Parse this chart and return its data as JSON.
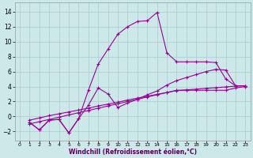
{
  "xlabel": "Windchill (Refroidissement éolien,°C)",
  "background_color": "#cce8e8",
  "grid_color": "#aacccc",
  "line_color": "#990099",
  "xlim": [
    -0.5,
    23.5
  ],
  "ylim": [
    -3.2,
    15.2
  ],
  "xticks": [
    0,
    1,
    2,
    3,
    4,
    5,
    6,
    7,
    8,
    9,
    10,
    11,
    12,
    13,
    14,
    15,
    16,
    17,
    18,
    19,
    20,
    21,
    22,
    23
  ],
  "yticks": [
    -2,
    0,
    2,
    4,
    6,
    8,
    10,
    12,
    14
  ],
  "line1_x": [
    1,
    2,
    3,
    4,
    5,
    6,
    7,
    8,
    9,
    10,
    11,
    12,
    13,
    14,
    15,
    16,
    17,
    18,
    19,
    20,
    21,
    22,
    23
  ],
  "line1_y": [
    -0.8,
    -1.8,
    -0.5,
    -0.4,
    -2.2,
    -0.3,
    3.5,
    7.0,
    9.0,
    11.0,
    12.0,
    12.7,
    12.8,
    13.9,
    8.5,
    7.3,
    7.3,
    7.3,
    7.3,
    7.2,
    5.0,
    4.1,
    4.1
  ],
  "line2_x": [
    1,
    2,
    3,
    4,
    5,
    6,
    7,
    8,
    9,
    10,
    11,
    12,
    13,
    14,
    15,
    16,
    17,
    18,
    19,
    20,
    21,
    22,
    23
  ],
  "line2_y": [
    -0.8,
    -1.8,
    -0.5,
    -0.4,
    -2.2,
    -0.3,
    1.5,
    3.8,
    3.0,
    1.2,
    1.8,
    2.3,
    2.9,
    3.4,
    4.2,
    4.8,
    5.2,
    5.6,
    6.0,
    6.3,
    6.2,
    4.1,
    4.1
  ],
  "line3_x": [
    1,
    2,
    3,
    4,
    5,
    6,
    7,
    8,
    9,
    10,
    11,
    12,
    13,
    14,
    15,
    16,
    17,
    18,
    19,
    20,
    21,
    22,
    23
  ],
  "line3_y": [
    -1.0,
    -0.7,
    -0.4,
    -0.1,
    0.2,
    0.5,
    0.8,
    1.1,
    1.4,
    1.7,
    2.0,
    2.3,
    2.6,
    2.9,
    3.2,
    3.5,
    3.5,
    3.5,
    3.5,
    3.5,
    3.5,
    3.8,
    4.0
  ],
  "line4_x": [
    1,
    2,
    3,
    4,
    5,
    6,
    7,
    8,
    9,
    10,
    11,
    12,
    13,
    14,
    15,
    16,
    17,
    18,
    19,
    20,
    21,
    22,
    23
  ],
  "line4_y": [
    -0.5,
    -0.2,
    0.1,
    0.35,
    0.6,
    0.85,
    1.1,
    1.4,
    1.65,
    1.9,
    2.2,
    2.45,
    2.7,
    2.95,
    3.2,
    3.45,
    3.55,
    3.65,
    3.75,
    3.85,
    3.95,
    4.05,
    4.1
  ],
  "figsize": [
    3.2,
    2.0
  ],
  "dpi": 100
}
